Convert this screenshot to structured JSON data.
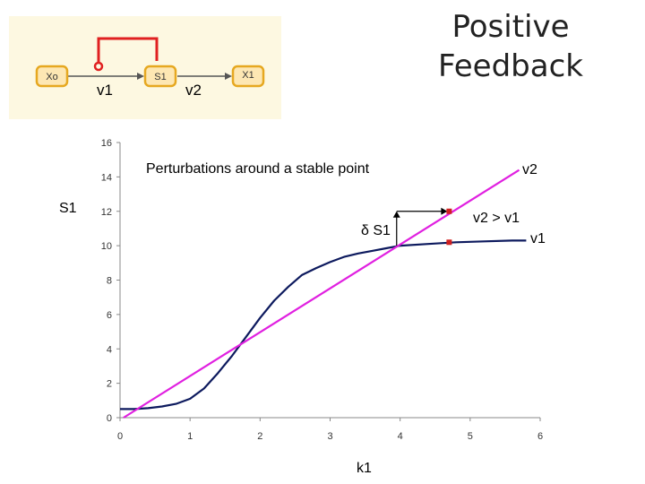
{
  "title": {
    "line1": "Positive",
    "line2": "Feedback"
  },
  "network": {
    "nodes": [
      "Xo",
      "S1",
      "X1"
    ],
    "edge_labels": [
      "v1",
      "v2"
    ],
    "colors": {
      "panel": "#fdf8e1",
      "node_fill": "#fde7b3",
      "node_border": "#e6a820",
      "feedback": "#e02020"
    }
  },
  "chart_data": {
    "type": "line",
    "title": "",
    "xlabel": "k1",
    "ylabel": "S1",
    "xlim": [
      0,
      6
    ],
    "ylim": [
      0,
      16
    ],
    "xticks": [
      0,
      1,
      2,
      3,
      4,
      5,
      6
    ],
    "yticks": [
      0,
      2,
      4,
      6,
      8,
      10,
      12,
      14,
      16
    ],
    "grid": false,
    "series": [
      {
        "name": "v1",
        "color": "#0d1a5e",
        "x": [
          0,
          0.2,
          0.4,
          0.6,
          0.8,
          1.0,
          1.2,
          1.4,
          1.6,
          1.8,
          2.0,
          2.2,
          2.4,
          2.6,
          2.8,
          3.0,
          3.2,
          3.4,
          3.6,
          3.8,
          4.0,
          4.4,
          4.8,
          5.2,
          5.6,
          5.8
        ],
        "y": [
          0.5,
          0.5,
          0.55,
          0.65,
          0.8,
          1.1,
          1.7,
          2.6,
          3.6,
          4.7,
          5.8,
          6.8,
          7.6,
          8.3,
          8.7,
          9.05,
          9.35,
          9.55,
          9.7,
          9.85,
          10.0,
          10.1,
          10.2,
          10.25,
          10.3,
          10.3
        ]
      },
      {
        "name": "v2",
        "color": "#e020e0",
        "x": [
          0.05,
          5.7
        ],
        "y": [
          0,
          14.4
        ]
      }
    ],
    "points": [
      {
        "x": 4.7,
        "y": 12.0,
        "color": "#d02020"
      },
      {
        "x": 4.7,
        "y": 10.2,
        "color": "#d02020"
      }
    ],
    "annotations": {
      "subtitle": "Perturbations around a stable point",
      "delta_label": "δ S1",
      "v2_label": "v2",
      "compare_label": "v2 > v1",
      "v1_label": "v1"
    },
    "arrow": {
      "x_start": 3.95,
      "x_corner": 3.95,
      "y_start": 10.0,
      "y_corner": 12.0,
      "x_end": 4.7
    }
  }
}
